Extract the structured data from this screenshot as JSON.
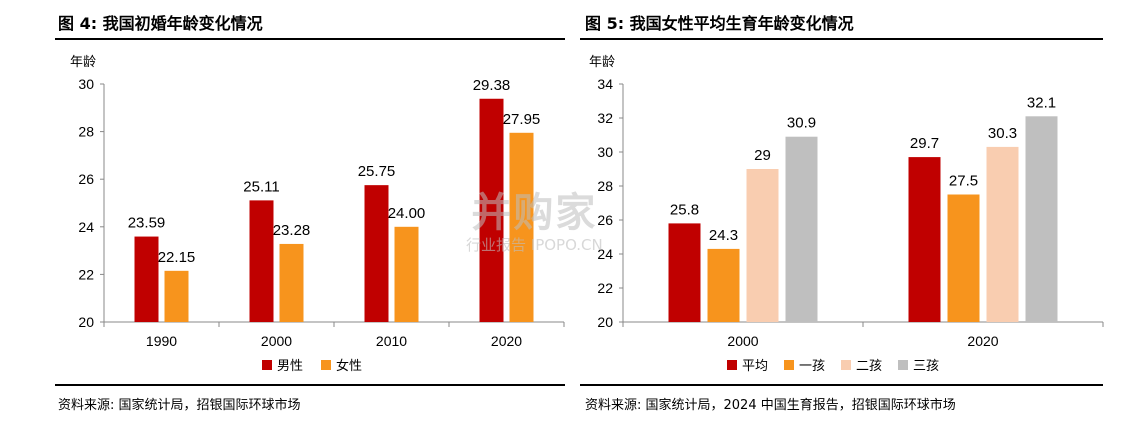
{
  "left": {
    "title": "图 4: 我国初婚年龄变化情况",
    "source": "资料来源: 国家统计局，招银国际环球市场"
  },
  "right": {
    "title": "图 5: 我国女性平均生育年龄变化情况",
    "source": "资料来源: 国家统计局，2024 中国生育报告，招银国际环球市场"
  },
  "watermark": {
    "main": "并购家",
    "sub": "行业报告 IPOPO.CN"
  },
  "chart_data": [
    {
      "type": "bar",
      "ylabel": "年龄",
      "ylim": [
        20,
        30
      ],
      "yticks": [
        20,
        22,
        24,
        26,
        28,
        30
      ],
      "categories": [
        "1990",
        "2000",
        "2010",
        "2020"
      ],
      "series": [
        {
          "name": "男性",
          "color": "#c00000",
          "values": [
            23.59,
            25.11,
            25.75,
            29.38
          ],
          "labels": [
            "23.59",
            "25.11",
            "25.75",
            "29.38"
          ]
        },
        {
          "name": "女性",
          "color": "#f7941d",
          "values": [
            22.15,
            23.28,
            24.0,
            27.95
          ],
          "labels": [
            "22.15",
            "23.28",
            "24.00",
            "27.95"
          ]
        }
      ],
      "legend": "bottom"
    },
    {
      "type": "bar",
      "ylabel": "年龄",
      "ylim": [
        20,
        34
      ],
      "yticks": [
        20,
        22,
        24,
        26,
        28,
        30,
        32,
        34
      ],
      "categories": [
        "2000",
        "2020"
      ],
      "series": [
        {
          "name": "平均",
          "color": "#c00000",
          "values": [
            25.8,
            29.7
          ],
          "labels": [
            "25.8",
            "29.7"
          ]
        },
        {
          "name": "一孩",
          "color": "#f7941d",
          "values": [
            24.3,
            27.5
          ],
          "labels": [
            "24.3",
            "27.5"
          ]
        },
        {
          "name": "二孩",
          "color": "#f9cdb0",
          "values": [
            29,
            30.3
          ],
          "labels": [
            "29",
            "30.3"
          ]
        },
        {
          "name": "三孩",
          "color": "#bfbfbf",
          "values": [
            30.9,
            32.1
          ],
          "labels": [
            "30.9",
            "32.1"
          ]
        }
      ],
      "legend": "bottom"
    }
  ]
}
